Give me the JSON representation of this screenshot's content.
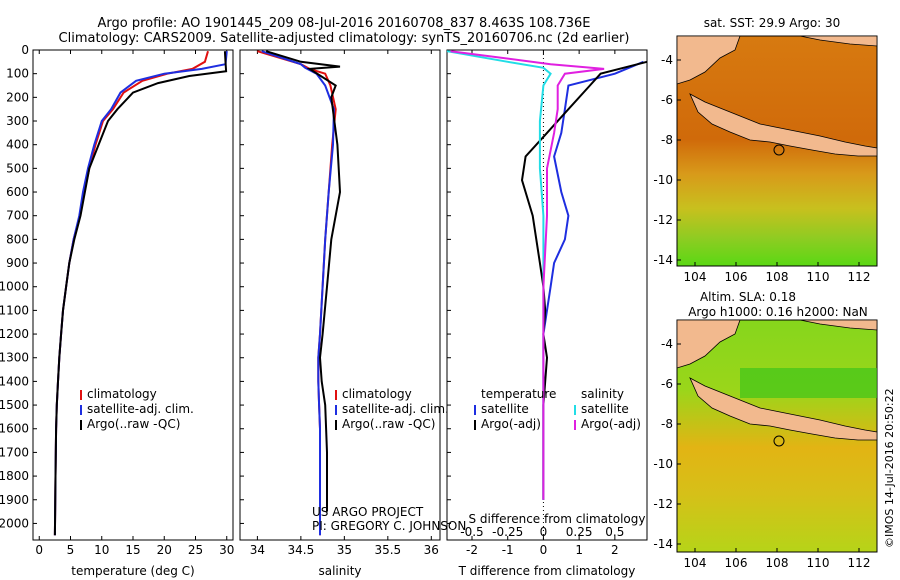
{
  "header": {
    "line1": "Argo profile: AO 1901445_209 08-Jul-2016 20160708_837 8.463S 108.736E",
    "line2": "Climatology: CARS2009. Satellite-adjusted climatology: synTS_20160706.nc (2d earlier)"
  },
  "credit": "US ARGO PROJECT",
  "pi": "PI: GREGORY C. JOHNSON",
  "timestamp": "©IMOS 14-Jul-2016 20:50:22",
  "colors": {
    "climatology": "#e01010",
    "satellite_adj": "#1e2ee0",
    "argo": "#000000",
    "sat_cyan": "#22dde6",
    "argo_magenta": "#e020e0"
  },
  "chart_data": [
    {
      "type": "line",
      "name": "temperature",
      "xlabel": "temperature (deg C)",
      "ylabel": "",
      "xlim": [
        -1,
        31
      ],
      "ylim": [
        2070,
        0
      ],
      "xticks": [
        0,
        5,
        10,
        15,
        20,
        25,
        30
      ],
      "yticks": [
        0,
        100,
        200,
        300,
        400,
        500,
        600,
        700,
        800,
        900,
        1000,
        1100,
        1200,
        1300,
        1400,
        1500,
        1600,
        1700,
        1800,
        1900,
        2000
      ],
      "legend": [
        "climatology",
        "satellite-adj. clim.",
        "Argo(..raw -QC)"
      ],
      "series": [
        {
          "name": "climatology",
          "color": "#e01010",
          "x": [
            27.0,
            26.5,
            24.5,
            20.5,
            16.5,
            13.5,
            11.8,
            10.2,
            9.0,
            8.0,
            7.2,
            6.5,
            5.5,
            4.8,
            4.3,
            3.8,
            3.5,
            3.2,
            3.0,
            2.8,
            2.7,
            2.6,
            2.5
          ],
          "y": [
            5,
            50,
            80,
            100,
            130,
            180,
            250,
            300,
            400,
            500,
            600,
            700,
            800,
            900,
            1000,
            1100,
            1200,
            1300,
            1400,
            1500,
            1600,
            1800,
            2050
          ]
        },
        {
          "name": "satellite-adj. clim.",
          "color": "#1e2ee0",
          "x": [
            30.0,
            29.8,
            26.0,
            20.0,
            15.5,
            13.0,
            11.5,
            10.0,
            8.8,
            7.8,
            7.0,
            6.4,
            5.5,
            4.8,
            4.3,
            3.8,
            3.5,
            3.2,
            3.0,
            2.8,
            2.7,
            2.6,
            2.5
          ],
          "y": [
            5,
            60,
            80,
            100,
            130,
            180,
            250,
            300,
            400,
            500,
            600,
            700,
            800,
            900,
            1000,
            1100,
            1200,
            1300,
            1400,
            1500,
            1600,
            1800,
            2050
          ]
        },
        {
          "name": "Argo(..raw -QC)",
          "color": "#000000",
          "x": [
            29.7,
            29.8,
            29.9,
            24.0,
            19.0,
            15.0,
            12.5,
            11.0,
            9.5,
            8.0,
            7.3,
            6.6,
            5.6,
            4.8,
            4.3,
            3.8,
            3.5,
            3.2,
            3.0,
            2.8,
            2.7,
            2.6,
            2.5
          ],
          "y": [
            5,
            50,
            90,
            110,
            140,
            180,
            250,
            300,
            400,
            500,
            600,
            700,
            800,
            900,
            1000,
            1100,
            1200,
            1300,
            1400,
            1500,
            1600,
            1800,
            2050
          ]
        }
      ]
    },
    {
      "type": "line",
      "name": "salinity",
      "xlabel": "salinity",
      "ylabel": "",
      "xlim": [
        33.8,
        36.1
      ],
      "ylim": [
        2070,
        0
      ],
      "xticks": [
        34,
        34.5,
        35,
        35.5,
        36
      ],
      "legend": [
        "climatology",
        "satellite-adj. clim.",
        "Argo(..raw -QC)"
      ],
      "series": [
        {
          "name": "climatology",
          "color": "#e01010",
          "x": [
            34.0,
            34.5,
            34.6,
            34.78,
            34.84,
            34.9,
            34.86,
            34.82,
            34.78,
            34.75,
            34.72,
            34.7,
            34.7,
            34.71,
            34.72,
            34.72,
            34.72,
            34.72
          ],
          "y": [
            5,
            60,
            80,
            100,
            150,
            250,
            400,
            600,
            800,
            1000,
            1200,
            1300,
            1400,
            1500,
            1600,
            1700,
            1900,
            2050
          ]
        },
        {
          "name": "satellite-adj. clim.",
          "color": "#1e2ee0",
          "x": [
            34.05,
            34.5,
            34.55,
            34.68,
            34.78,
            34.88,
            34.87,
            34.82,
            34.78,
            34.75,
            34.72,
            34.7,
            34.7,
            34.71,
            34.72,
            34.72,
            34.72,
            34.72
          ],
          "y": [
            5,
            60,
            75,
            100,
            150,
            250,
            400,
            600,
            800,
            1000,
            1200,
            1300,
            1400,
            1500,
            1600,
            1700,
            1900,
            2050
          ]
        },
        {
          "name": "Argo(..raw -QC)",
          "color": "#000000",
          "x": [
            34.1,
            34.5,
            34.95,
            34.6,
            34.9,
            34.85,
            34.92,
            34.95,
            34.85,
            34.8,
            34.75,
            34.72,
            34.74,
            34.78,
            34.79,
            34.8,
            34.8,
            34.8
          ],
          "y": [
            5,
            50,
            70,
            80,
            150,
            200,
            400,
            600,
            800,
            1000,
            1200,
            1300,
            1400,
            1500,
            1600,
            1700,
            1900,
            1950
          ]
        }
      ]
    },
    {
      "type": "line",
      "name": "difference",
      "xlabel": "T difference from climatology",
      "xlabel_top": "S difference from climatology",
      "xlim": [
        -2.7,
        2.9
      ],
      "ylim": [
        2070,
        0
      ],
      "xticks": [
        -2,
        -1,
        0,
        1,
        2
      ],
      "xticks_s": [
        -0.5,
        -0.25,
        0,
        0.25,
        0.5
      ],
      "legend_header": [
        "temperature",
        "salinity"
      ],
      "legend": [
        "satellite",
        "Argo(-adj)",
        "satellite",
        "Argo(-adj)"
      ],
      "series": [
        {
          "name": "temperature satellite",
          "color": "#1e2ee0",
          "x": [
            2.8,
            2.0,
            0.7,
            0.6,
            0.5,
            0.3,
            0.5,
            0.7,
            0.6,
            0.3,
            0.2,
            0.1,
            0.0,
            0.0,
            0.0,
            0.0
          ],
          "y": [
            50,
            100,
            150,
            250,
            350,
            450,
            600,
            700,
            800,
            900,
            1000,
            1100,
            1200,
            1400,
            1600,
            1900
          ]
        },
        {
          "name": "temperature Argo(-adj)",
          "color": "#000000",
          "x": [
            2.9,
            1.6,
            1.3,
            0.7,
            0.1,
            -0.5,
            -0.6,
            -0.3,
            -0.1,
            0.0,
            0.05,
            0.0,
            0.1,
            0.0,
            0.0,
            0.0
          ],
          "y": [
            50,
            100,
            150,
            250,
            350,
            450,
            550,
            700,
            900,
            1000,
            1100,
            1200,
            1300,
            1500,
            1700,
            1900
          ]
        },
        {
          "name": "salinity satellite",
          "color": "#22dde6",
          "x": [
            -2.7,
            -1.0,
            0.0,
            0.2,
            0.0,
            -0.1,
            -0.1,
            0.0,
            0.0,
            0.0,
            0.0,
            0.0
          ],
          "y": [
            5,
            50,
            75,
            100,
            150,
            300,
            500,
            700,
            900,
            1200,
            1500,
            1900
          ]
        },
        {
          "name": "salinity Argo(-adj)",
          "color": "#e020e0",
          "x": [
            -2.6,
            0.2,
            1.7,
            0.6,
            0.4,
            0.4,
            0.3,
            0.1,
            0.1,
            0.0,
            0.0,
            0.0
          ],
          "y": [
            5,
            60,
            80,
            100,
            150,
            250,
            350,
            500,
            700,
            1000,
            1400,
            1900
          ]
        }
      ]
    }
  ],
  "maps": [
    {
      "title": "sat. SST: 29.9 Argo: 30",
      "xticks": [
        "104",
        "106",
        "108",
        "110",
        "112"
      ],
      "yticks": [
        "-4",
        "-6",
        "-8",
        "-10",
        "-12",
        "-14"
      ]
    },
    {
      "title": "Altim. SLA: 0.18",
      "subtitle": "Argo h1000: 0.16 h2000: NaN",
      "xticks": [
        "104",
        "106",
        "108",
        "110",
        "112"
      ],
      "yticks": [
        "-4",
        "-6",
        "-8",
        "-10",
        "-12",
        "-14"
      ]
    }
  ]
}
